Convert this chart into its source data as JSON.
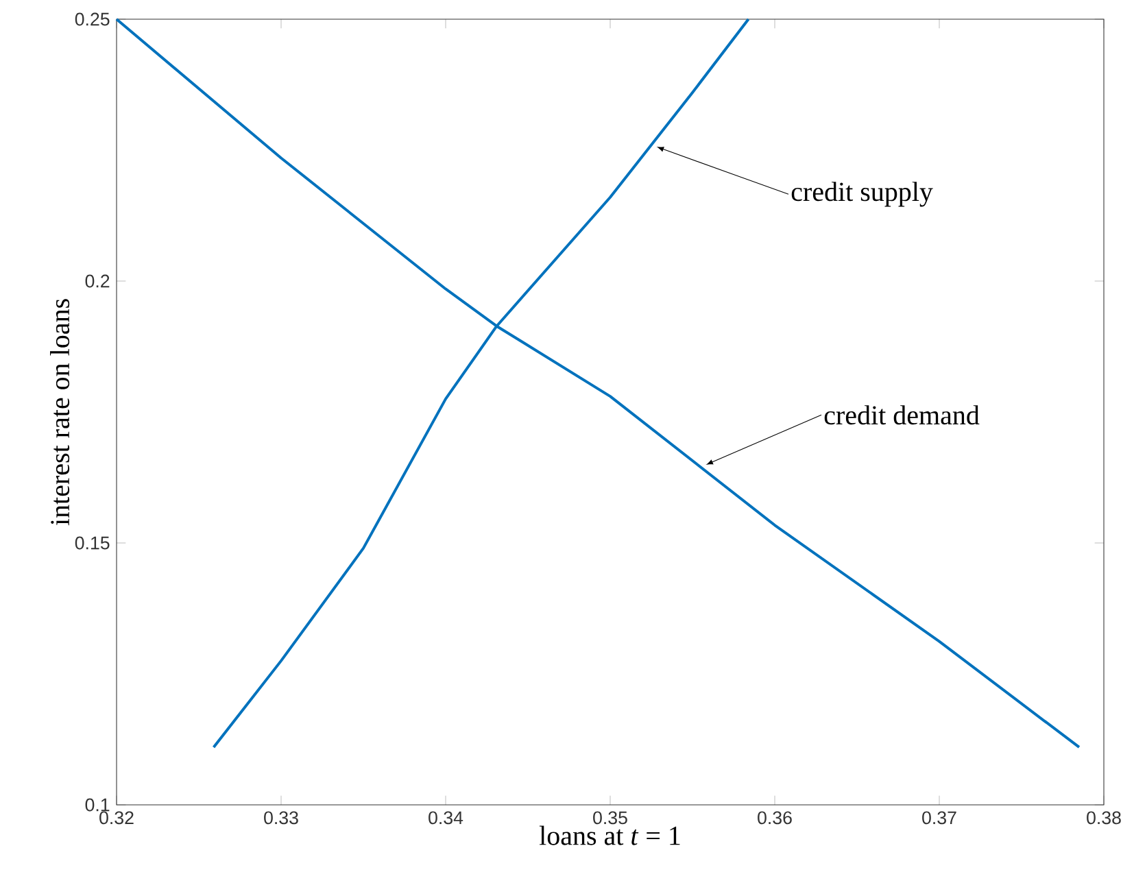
{
  "chart_data": {
    "type": "line",
    "xlabel": "loans at *t* = 1",
    "ylabel": "interest rate on loans",
    "xlim": [
      0.32,
      0.38
    ],
    "ylim": [
      0.1,
      0.25
    ],
    "xticks": [
      0.32,
      0.33,
      0.34,
      0.35,
      0.36,
      0.37,
      0.38
    ],
    "yticks": [
      0.1,
      0.15,
      0.2,
      0.25
    ],
    "grid": false,
    "series": [
      {
        "color": "#0072bd",
        "x": [
          0.32,
          0.33,
          0.34,
          0.3431,
          0.35,
          0.36,
          0.37,
          0.3785
        ],
        "values": [
          0.25,
          0.2235,
          0.1985,
          0.1914,
          0.178,
          0.1534,
          0.1312,
          0.111
        ]
      },
      {
        "color": "#0072bd",
        "x": [
          0.3259,
          0.33,
          0.335,
          0.34,
          0.3431,
          0.35,
          0.355,
          0.3584
        ],
        "values": [
          0.111,
          0.1275,
          0.149,
          0.1775,
          0.1914,
          0.216,
          0.236,
          0.25
        ]
      }
    ],
    "annotations": [
      {
        "text": "credit supply",
        "x": 0.3525,
        "y": 0.226
      },
      {
        "text": "credit demand",
        "x": 0.3555,
        "y": 0.1645
      }
    ]
  }
}
